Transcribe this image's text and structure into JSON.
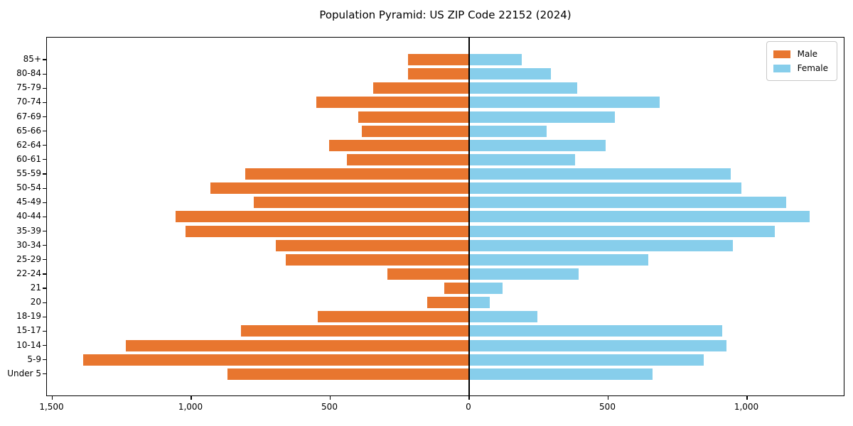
{
  "chart_data": {
    "type": "bar",
    "subtype": "population-pyramid",
    "orientation": "horizontal",
    "title": "Population Pyramid: US ZIP Code 22152 (2024)",
    "xlabel": "",
    "ylabel": "",
    "grid": false,
    "legend_position": "upper right",
    "xlim": [
      -1520,
      1360
    ],
    "categories_top_to_bottom": [
      "85+",
      "80-84",
      "75-79",
      "70-74",
      "67-69",
      "65-66",
      "62-64",
      "60-61",
      "55-59",
      "50-54",
      "45-49",
      "40-44",
      "35-39",
      "30-34",
      "25-29",
      "22-24",
      "21",
      "20",
      "18-19",
      "15-17",
      "10-14",
      "5-9",
      "Under 5"
    ],
    "series": [
      {
        "name": "Male",
        "side": "left",
        "color": "#e8762f",
        "values": [
          220,
          220,
          345,
          550,
          400,
          385,
          505,
          440,
          805,
          930,
          775,
          1055,
          1020,
          695,
          660,
          295,
          90,
          150,
          545,
          820,
          1235,
          1390,
          870
        ]
      },
      {
        "name": "Female",
        "side": "right",
        "color": "#87ceeb",
        "values": [
          190,
          295,
          390,
          685,
          525,
          280,
          490,
          380,
          940,
          980,
          1140,
          1225,
          1100,
          950,
          645,
          395,
          120,
          75,
          245,
          910,
          925,
          845,
          660
        ]
      }
    ],
    "x_ticks": {
      "values": [
        -1500,
        -1000,
        -500,
        0,
        500,
        1000
      ],
      "labels": [
        "1,500",
        "1,000",
        "500",
        "0",
        "500",
        "1,000"
      ]
    },
    "axis_color": "#000000",
    "background_color": "#ffffff",
    "zero_line": true
  }
}
